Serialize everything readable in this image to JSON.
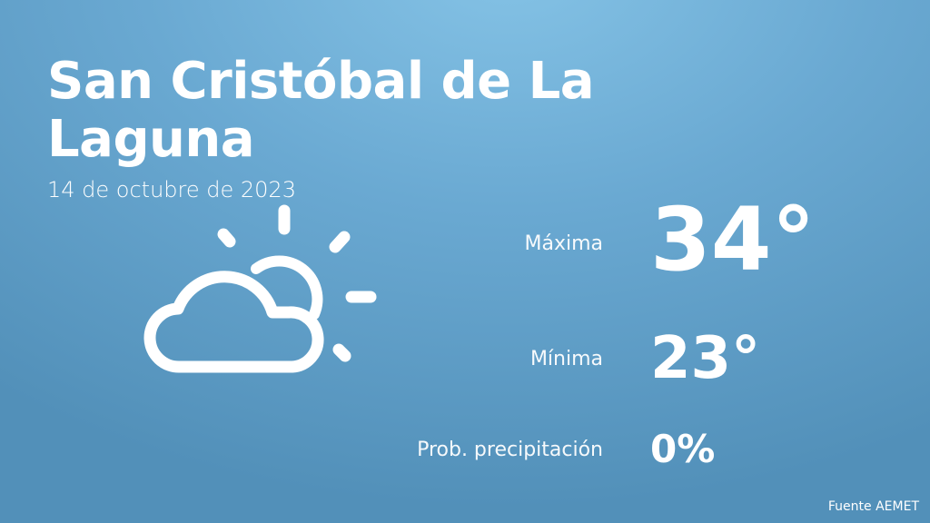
{
  "location": "San Cristóbal de La Laguna",
  "date": "14 de octubre de 2023",
  "weather_icon": "partly-cloudy-icon",
  "stats": {
    "max_label": "Máxima",
    "max_value": "34°",
    "min_label": "Mínima",
    "min_value": "23°",
    "precip_label": "Prob. precipitación",
    "precip_value": "0%"
  },
  "source": "Fuente AEMET"
}
